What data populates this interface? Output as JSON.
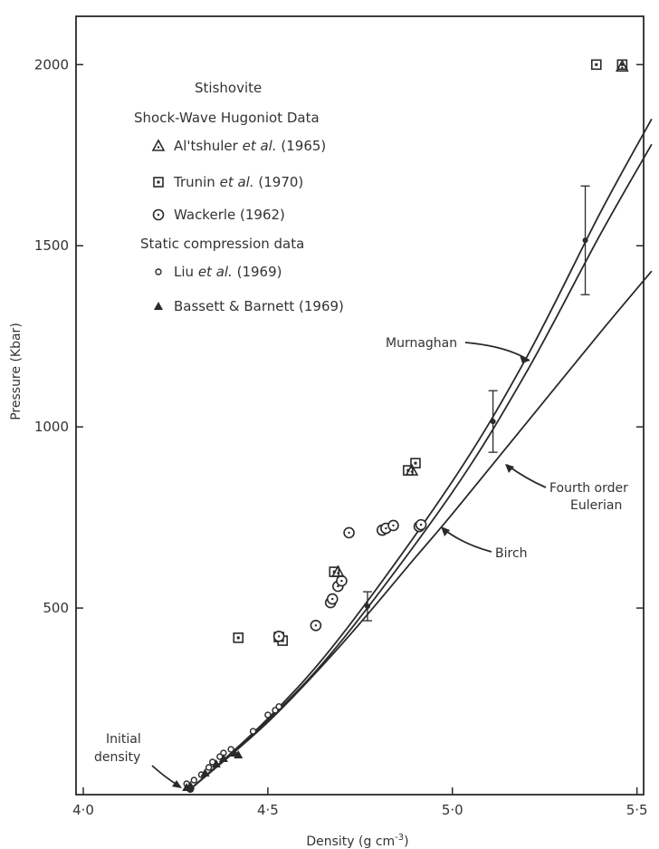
{
  "chart_data": {
    "type": "scatter",
    "xlabel": "Density (g cm",
    "xlabel_sup": "-3",
    "xlabel_end": ")",
    "ylabel": "Pressure (Kbar)",
    "xlim": [
      4.0,
      5.5
    ],
    "ylim": [
      0,
      2100
    ],
    "x_ticks": [
      {
        "value": 4.0,
        "label": "4·0"
      },
      {
        "value": 4.5,
        "label": "4·5"
      },
      {
        "value": 5.0,
        "label": "5·0"
      },
      {
        "value": 5.5,
        "label": "5·5"
      }
    ],
    "y_ticks": [
      {
        "value": 500,
        "label": "500"
      },
      {
        "value": 1000,
        "label": "1000"
      },
      {
        "value": 1500,
        "label": "1500"
      },
      {
        "value": 2000,
        "label": "2000"
      }
    ],
    "grid": false,
    "legend_placement": "top-left",
    "legend": {
      "title": "Stishovite",
      "shock_header": "Shock-Wave Hugoniot Data",
      "static_header": "Static compression data",
      "entries": [
        {
          "key": "altshuler",
          "marker": "triangle-open",
          "name": "Al'tshuler",
          "etal": "et al.",
          "year": "(1965)"
        },
        {
          "key": "trunin",
          "marker": "square-dot",
          "name": "Trunin",
          "etal": "et al.",
          "year": "(1970)"
        },
        {
          "key": "wackerle",
          "marker": "circle-open",
          "name": "Wackerle",
          "etal": "",
          "year": "(1962)"
        },
        {
          "key": "liu",
          "marker": "small-circle",
          "name": "Liu",
          "etal": "et al.",
          "year": "(1969)"
        },
        {
          "key": "bassett",
          "marker": "triangle-filled",
          "name": "Bassett & Barnett",
          "etal": "",
          "year": "(1969)"
        }
      ]
    },
    "series": [
      {
        "key": "trunin",
        "points": [
          [
            4.42,
            418
          ],
          [
            4.53,
            420
          ],
          [
            4.54,
            410
          ],
          [
            4.68,
            600
          ],
          [
            4.88,
            880
          ],
          [
            4.9,
            900
          ],
          [
            5.39,
            2000
          ],
          [
            5.46,
            2000
          ]
        ]
      },
      {
        "key": "altshuler",
        "points": [
          [
            4.69,
            600
          ],
          [
            4.89,
            880
          ],
          [
            5.46,
            1995
          ]
        ]
      },
      {
        "key": "wackerle",
        "points": [
          [
            4.53,
            422
          ],
          [
            4.63,
            452
          ],
          [
            4.67,
            515
          ],
          [
            4.675,
            525
          ],
          [
            4.69,
            560
          ],
          [
            4.7,
            575
          ],
          [
            4.72,
            708
          ],
          [
            4.81,
            715
          ],
          [
            4.82,
            720
          ],
          [
            4.84,
            728
          ],
          [
            4.91,
            725
          ],
          [
            4.915,
            730
          ]
        ]
      },
      {
        "key": "liu",
        "points": [
          [
            4.28,
            15
          ],
          [
            4.3,
            25
          ],
          [
            4.32,
            40
          ],
          [
            4.34,
            60
          ],
          [
            4.35,
            75
          ],
          [
            4.37,
            90
          ],
          [
            4.38,
            100
          ],
          [
            4.4,
            110
          ],
          [
            4.46,
            160
          ],
          [
            4.5,
            205
          ],
          [
            4.52,
            218
          ],
          [
            4.53,
            228
          ]
        ]
      },
      {
        "key": "bassett",
        "points": [
          [
            4.28,
            5
          ],
          [
            4.29,
            10
          ],
          [
            4.33,
            45
          ],
          [
            4.36,
            70
          ],
          [
            4.38,
            85
          ],
          [
            4.41,
            100
          ],
          [
            4.42,
            95
          ]
        ]
      }
    ],
    "data_points_with_error": [
      {
        "x": 4.77,
        "y": 505,
        "err": 40
      },
      {
        "x": 5.11,
        "y": 1015,
        "err": 85
      },
      {
        "x": 5.36,
        "y": 1515,
        "err": 150
      }
    ],
    "initial_point": [
      4.29,
      0
    ],
    "curves": [
      {
        "key": "murnaghan",
        "points": [
          [
            4.29,
            0
          ],
          [
            4.5,
            195
          ],
          [
            4.7,
            425
          ],
          [
            5.0,
            850
          ],
          [
            5.2,
            1190
          ],
          [
            5.4,
            1590
          ],
          [
            5.54,
            1850
          ]
        ]
      },
      {
        "key": "birch",
        "points": [
          [
            4.29,
            0
          ],
          [
            4.5,
            190
          ],
          [
            4.7,
            410
          ],
          [
            5.0,
            820
          ],
          [
            5.2,
            1150
          ],
          [
            5.4,
            1530
          ],
          [
            5.54,
            1780
          ]
        ]
      },
      {
        "key": "eulerian",
        "points": [
          [
            4.29,
            0
          ],
          [
            4.5,
            185
          ],
          [
            4.7,
            400
          ],
          [
            4.9,
            640
          ],
          [
            5.0,
            760
          ],
          [
            5.2,
            1010
          ],
          [
            5.4,
            1260
          ],
          [
            5.54,
            1430
          ]
        ]
      }
    ],
    "annotations": {
      "murnaghan": "Murnaghan",
      "birch": "Birch",
      "eulerian_line1": "Fourth order",
      "eulerian_line2": "Eulerian",
      "initial_line1": "Initial",
      "initial_line2": "density"
    }
  }
}
